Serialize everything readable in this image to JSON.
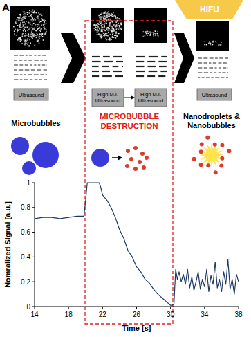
{
  "panel_label": "A",
  "diagram": {
    "hifu_label": "HIFU",
    "steps": [
      {
        "boxes": [
          "Ultrasound"
        ],
        "caption": "Microbubbles"
      },
      {
        "boxes": [
          "High M.I. Ultrasound",
          "High M.I. Ultrasound"
        ],
        "caption": "MICROBUBBLE DESTRUCTION"
      },
      {
        "boxes": [
          "Ultrasound"
        ],
        "caption": "Nanodroplets & Nanobubbles"
      }
    ]
  },
  "chart_data": {
    "type": "line",
    "xlabel": "Time [s]",
    "ylabel": "Nomralized Signal [a.u.]",
    "x": [
      14,
      15,
      16,
      17,
      18,
      19,
      19.8,
      20,
      20.2,
      20.4,
      21,
      21.6,
      21.8,
      22,
      22.5,
      23,
      23.5,
      24,
      24.5,
      25,
      25.5,
      26,
      26.5,
      27,
      27.5,
      28,
      28.5,
      29,
      29.5,
      30,
      30.2,
      30.4,
      30.6,
      30.8,
      31,
      31.25,
      31.5,
      31.75,
      32,
      32.25,
      32.5,
      32.75,
      33,
      33.25,
      33.5,
      33.75,
      34,
      34.25,
      34.5,
      34.75,
      35,
      35.25,
      35.5,
      35.75,
      36,
      36.25,
      36.5,
      36.75,
      37,
      37.25,
      37.5,
      37.75,
      38
    ],
    "values": [
      0.71,
      0.72,
      0.72,
      0.71,
      0.72,
      0.73,
      0.73,
      0.85,
      1.0,
      1.0,
      1.0,
      1.0,
      0.96,
      0.9,
      0.86,
      0.8,
      0.72,
      0.62,
      0.55,
      0.45,
      0.4,
      0.32,
      0.28,
      0.22,
      0.19,
      0.14,
      0.1,
      0.07,
      0.04,
      0.01,
      0.01,
      0.02,
      0.3,
      0.22,
      0.28,
      0.2,
      0.26,
      0.18,
      0.3,
      0.15,
      0.24,
      0.13,
      0.2,
      0.28,
      0.14,
      0.22,
      0.16,
      0.3,
      0.12,
      0.25,
      0.18,
      0.36,
      0.15,
      0.22,
      0.12,
      0.28,
      0.18,
      0.38,
      0.14,
      0.22,
      0.1,
      0.26,
      0.2
    ],
    "color": "#1f3864",
    "xlim": [
      14,
      38
    ],
    "xticks": [
      14,
      18,
      22,
      26,
      30,
      34,
      38
    ],
    "ylim": [
      0,
      1
    ],
    "yticks": [
      0,
      0.2,
      0.4,
      0.6,
      0.8,
      1
    ],
    "grid": false
  }
}
